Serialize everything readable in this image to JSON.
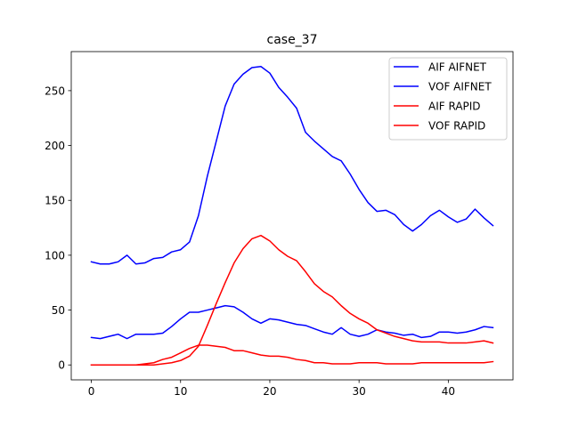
{
  "chart_data": {
    "type": "line",
    "title": "case_37",
    "xlabel": "",
    "ylabel": "",
    "xlim": [
      -2.25,
      47.25
    ],
    "ylim": [
      -13.6,
      285.6
    ],
    "xticks": [
      0,
      10,
      20,
      30,
      40
    ],
    "yticks": [
      0,
      50,
      100,
      150,
      200,
      250
    ],
    "grid": false,
    "legend_position": "top-right",
    "x": [
      0,
      1,
      2,
      3,
      4,
      5,
      6,
      7,
      8,
      9,
      10,
      11,
      12,
      13,
      14,
      15,
      16,
      17,
      18,
      19,
      20,
      21,
      22,
      23,
      24,
      25,
      26,
      27,
      28,
      29,
      30,
      31,
      32,
      33,
      34,
      35,
      36,
      37,
      38,
      39,
      40,
      41,
      42,
      43,
      44,
      45
    ],
    "series": [
      {
        "name": "AIF AIFNET",
        "color": "#0000ff",
        "values": [
          94,
          92,
          92,
          94,
          100,
          92,
          93,
          97,
          98,
          103,
          105,
          112,
          136,
          172,
          204,
          236,
          256,
          265,
          271,
          272,
          266,
          253,
          244,
          234,
          212,
          204,
          197,
          190,
          186,
          174,
          160,
          148,
          140,
          141,
          137,
          128,
          122,
          128,
          136,
          141,
          135,
          130,
          133,
          142,
          134,
          127
        ]
      },
      {
        "name": "VOF AIFNET",
        "color": "#0000ff",
        "values": [
          25,
          24,
          26,
          28,
          24,
          28,
          28,
          28,
          29,
          35,
          42,
          48,
          48,
          50,
          52,
          54,
          53,
          48,
          42,
          38,
          42,
          41,
          39,
          37,
          36,
          33,
          30,
          28,
          34,
          28,
          26,
          28,
          32,
          30,
          29,
          27,
          28,
          25,
          26,
          30,
          30,
          29,
          30,
          32,
          35,
          34
        ]
      },
      {
        "name": "AIF RAPID",
        "color": "#ff0000",
        "values": [
          0,
          0,
          0,
          0,
          0,
          0,
          1,
          2,
          5,
          7,
          11,
          15,
          18,
          18,
          17,
          16,
          13,
          13,
          11,
          9,
          8,
          8,
          7,
          5,
          4,
          2,
          2,
          1,
          1,
          1,
          2,
          2,
          2,
          1,
          1,
          1,
          1,
          2,
          2,
          2,
          2,
          2,
          2,
          2,
          2,
          3
        ]
      },
      {
        "name": "VOF RAPID",
        "color": "#ff0000",
        "values": [
          0,
          0,
          0,
          0,
          0,
          0,
          0,
          0,
          1,
          2,
          4,
          8,
          17,
          36,
          56,
          75,
          93,
          106,
          115,
          118,
          113,
          105,
          99,
          95,
          85,
          74,
          67,
          62,
          54,
          47,
          42,
          38,
          32,
          29,
          26,
          24,
          22,
          21,
          21,
          21,
          20,
          20,
          20,
          21,
          22,
          20
        ]
      }
    ]
  }
}
